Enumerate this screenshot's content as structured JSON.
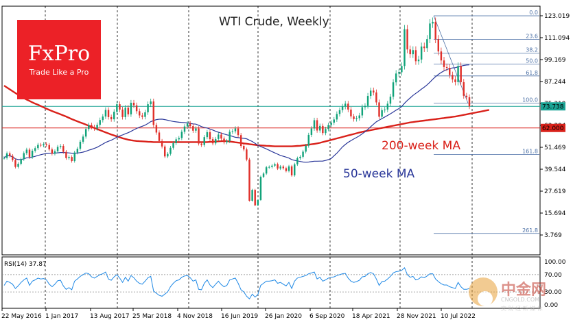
{
  "chart_data": {
    "type": "candlestick",
    "title": "WTI Crude, Weekly",
    "y_ticks": [
      "123.019",
      "111.094",
      "99.169",
      "87.244",
      "75.319",
      "63.394",
      "51.469",
      "39.544",
      "27.619",
      "15.694",
      "3.769"
    ],
    "ylim": [
      -4.0,
      130.0
    ],
    "x_ticks": [
      "22 May 2016",
      "1 Jan 2017",
      "13 Aug 2017",
      "25 Mar 2018",
      "4 Nov 2018",
      "16 Jun 2019",
      "26 Jan 2020",
      "6 Sep 2020",
      "18 Apr 2021",
      "28 Nov 2021",
      "10 Jul 2022"
    ],
    "fib_levels": [
      {
        "label": "0.0",
        "value": 123.0
      },
      {
        "label": "23.6",
        "value": 110.2
      },
      {
        "label": "38.2",
        "value": 102.7
      },
      {
        "label": "50.0",
        "value": 96.7
      },
      {
        "label": "61.8",
        "value": 90.3
      },
      {
        "label": "100.0",
        "value": 75.5
      },
      {
        "label": "161.8",
        "value": 47.5
      },
      {
        "label": "261.8",
        "value": 4.6
      }
    ],
    "price_badges": [
      {
        "label": "73.738",
        "value": 73.74,
        "color": "#1aa394"
      },
      {
        "label": "62.000",
        "value": 62.0,
        "color": "#d9211a"
      }
    ],
    "ma_labels": {
      "ma200": "200-week MA",
      "ma50": "50-week MA"
    },
    "colors": {
      "up": "#12a37a",
      "down": "#e0302a",
      "ma200": "#d9211a",
      "ma50": "#2a3799",
      "hline_teal": "#1aa394",
      "grid": "#000000"
    },
    "close_series": [
      45.7,
      48.2,
      46.8,
      44.5,
      40.8,
      42.5,
      45.0,
      48.3,
      50.2,
      46.1,
      49.6,
      51.0,
      52.8,
      52.5,
      53.2,
      52.7,
      50.3,
      48.0,
      49.3,
      51.7,
      52.2,
      49.0,
      45.6,
      46.2,
      44.0,
      48.6,
      50.7,
      54.5,
      57.3,
      61.4,
      63.6,
      62.5,
      61.7,
      63.7,
      66.3,
      68.2,
      71.8,
      67.9,
      66.7,
      70.8,
      74.9,
      72.0,
      67.9,
      73.0,
      69.4,
      75.7,
      74.3,
      71.1,
      68.8,
      68.0,
      70.5,
      74.9,
      76.4,
      63.6,
      59.5,
      54.9,
      51.9,
      46.5,
      47.9,
      51.2,
      53.7,
      55.8,
      56.5,
      59.9,
      62.8,
      64.4,
      63.0,
      60.5,
      61.7,
      53.5,
      52.7,
      57.0,
      59.7,
      55.9,
      53.6,
      56.0,
      58.4,
      56.2,
      54.2,
      54.9,
      59.9,
      60.2,
      61.7,
      58.1,
      52.2,
      50.3,
      44.8,
      22.4,
      28.3,
      19.9,
      22.8,
      35.4,
      37.2,
      40.6,
      40.8,
      41.5,
      42.3,
      39.9,
      41.0,
      40.1,
      38.6,
      41.1,
      36.2,
      42.2,
      45.5,
      46.3,
      49.1,
      52.3,
      58.2,
      61.7,
      66.2,
      60.6,
      63.1,
      59.2,
      61.4,
      63.6,
      64.9,
      66.6,
      69.6,
      71.7,
      73.6,
      75.2,
      72.0,
      68.3,
      66.8,
      67.3,
      68.8,
      73.3,
      74.0,
      79.4,
      82.3,
      81.3,
      75.9,
      68.1,
      71.7,
      72.0,
      75.2,
      79.0,
      86.8,
      91.6,
      92.3,
      95.7,
      115.7,
      104.7,
      102.1,
      104.3,
      98.3,
      99.2,
      106.3,
      105.4,
      110.3,
      118.8,
      119.7,
      110.3,
      103.6,
      98.7,
      95.1,
      94.7,
      90.8,
      88.4,
      86.9,
      95.7,
      86.9,
      79.5,
      78.7,
      73.74
    ],
    "ma200_series": [
      85.0,
      84.0,
      83.0,
      82.0,
      81.0,
      80.0,
      79.0,
      78.2,
      77.4,
      76.7,
      75.9,
      75.2,
      74.6,
      73.9,
      73.2,
      72.5,
      71.8,
      71.2,
      70.6,
      70.0,
      69.4,
      68.8,
      68.2,
      67.5,
      66.8,
      66.2,
      65.6,
      65.0,
      64.4,
      63.8,
      63.2,
      62.6,
      62.0,
      61.4,
      60.8,
      60.2,
      59.6,
      59.0,
      58.4,
      57.9,
      57.4,
      56.9,
      56.4,
      56.0,
      55.6,
      55.3,
      55.1,
      54.9,
      54.8,
      54.7,
      54.6,
      54.5,
      54.4,
      54.3,
      54.3,
      54.3,
      54.3,
      54.3,
      54.3,
      54.3,
      54.3,
      54.3,
      54.3,
      54.3,
      54.3,
      54.3,
      54.3,
      54.3,
      54.3,
      54.3,
      54.3,
      54.3,
      54.3,
      54.4,
      54.5,
      54.6,
      54.7,
      54.8,
      54.9,
      54.8,
      54.6,
      54.4,
      54.2,
      54.0,
      53.8,
      53.6,
      53.4,
      53.2,
      53.0,
      52.8,
      52.6,
      52.5,
      52.4,
      52.3,
      52.2,
      52.1,
      52.0,
      52.0,
      52.0,
      52.0,
      52.0,
      52.0,
      52.0,
      52.1,
      52.2,
      52.3,
      52.5,
      52.7,
      52.9,
      53.1,
      53.3,
      53.6,
      53.9,
      54.3,
      54.7,
      55.1,
      55.5,
      55.9,
      56.3,
      56.7,
      57.1,
      57.5,
      57.9,
      58.3,
      58.7,
      59.1,
      59.5,
      59.9,
      60.2,
      60.5,
      60.8,
      61.1,
      61.4,
      61.7,
      62.0,
      62.3,
      62.6,
      62.9,
      63.2,
      63.5,
      63.8,
      64.1,
      64.4,
      64.7,
      65.0,
      65.2,
      65.4,
      65.6,
      65.8,
      66.0,
      66.2,
      66.4,
      66.6,
      66.8,
      67.0,
      67.2,
      67.4,
      67.6,
      67.8,
      68.0,
      68.2,
      68.5,
      68.8,
      69.1,
      69.4,
      69.7,
      70.0,
      70.3,
      70.6,
      70.9,
      71.2,
      71.5,
      71.8
    ],
    "rsi": {
      "label": "RSI(14) 37.87",
      "ticks": [
        "100.00",
        "70.00",
        "30.00",
        "0.00"
      ],
      "ylim": [
        0,
        100
      ],
      "values": [
        45,
        55,
        52,
        48,
        38,
        44,
        52,
        58,
        62,
        45,
        55,
        58,
        62,
        60,
        61,
        58,
        48,
        42,
        48,
        56,
        57,
        44,
        36,
        40,
        35,
        55,
        60,
        66,
        70,
        74,
        72,
        65,
        62,
        66,
        70,
        72,
        76,
        60,
        57,
        65,
        70,
        62,
        52,
        64,
        55,
        68,
        63,
        55,
        50,
        48,
        55,
        63,
        66,
        32,
        27,
        22,
        20,
        25,
        30,
        42,
        50,
        56,
        58,
        64,
        67,
        68,
        63,
        55,
        58,
        36,
        35,
        50,
        58,
        46,
        40,
        48,
        55,
        47,
        42,
        45,
        58,
        60,
        62,
        50,
        35,
        30,
        20,
        14,
        25,
        18,
        24,
        45,
        50,
        55,
        55,
        56,
        58,
        50,
        52,
        48,
        44,
        52,
        38,
        55,
        62,
        64,
        66,
        68,
        72,
        74,
        76,
        60,
        64,
        55,
        58,
        62,
        64,
        65,
        68,
        70,
        72,
        73,
        62,
        55,
        52,
        54,
        57,
        65,
        66,
        72,
        75,
        72,
        60,
        45,
        54,
        55,
        60,
        66,
        74,
        77,
        78,
        80,
        86,
        70,
        64,
        66,
        58,
        60,
        65,
        63,
        67,
        72,
        72,
        60,
        54,
        49,
        46,
        46,
        42,
        40,
        38,
        52,
        42,
        36,
        36,
        37.87
      ]
    }
  },
  "logo": {
    "brand": "FxPro",
    "tagline": "Trade Like a Pro"
  },
  "watermark": {
    "text": "中金网",
    "url": "CNGOLD.COM",
    "sub": "文 财 经 新 媒 体"
  }
}
